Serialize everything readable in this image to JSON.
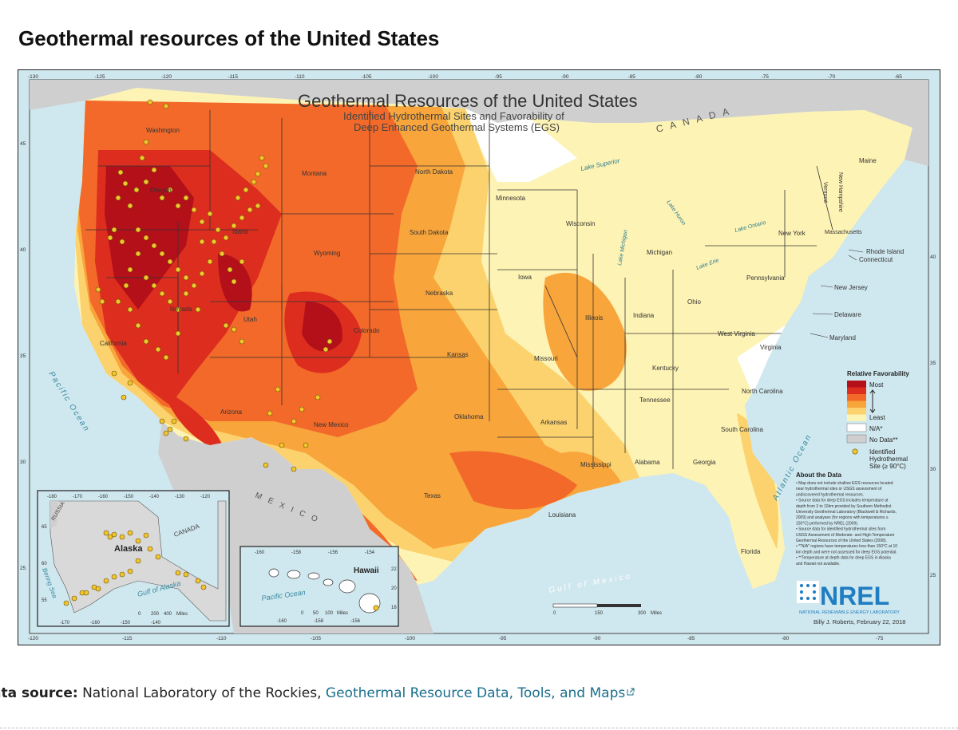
{
  "page": {
    "title": "Geothermal resources of the United States"
  },
  "map": {
    "title": "Geothermal Resources of the United States",
    "subtitle_line1": "Identified Hydrothermal Sites and Favorability of",
    "subtitle_line2": "Deep Enhanced Geothermal Systems (EGS)",
    "canada_label": "C A N A D A",
    "mexico_label": "M E X I C O",
    "water_labels": {
      "pacific": "Pacific Ocean",
      "atlantic": "Atlantic Ocean",
      "gulf": "Gulf of Mexico",
      "superior": "Lake Superior",
      "michigan": "Lake Michigan",
      "huron": "Lake Huron",
      "erie": "Lake Erie",
      "ontario": "Lake Ontario"
    },
    "top_ticks": [
      "-130",
      "-125",
      "-120",
      "-115",
      "-110",
      "-105",
      "-100",
      "-95",
      "-90",
      "-85",
      "-80",
      "-75",
      "-70",
      "-65"
    ],
    "bottom_ticks": [
      "-120",
      "-115",
      "-110",
      "-105",
      "-100",
      "-95",
      "-90",
      "-85",
      "-80",
      "-75"
    ],
    "left_ticks": [
      "45",
      "40",
      "35",
      "30",
      "25"
    ],
    "right_ticks": [
      "40",
      "35",
      "30",
      "25"
    ],
    "states": {
      "washington": "Washington",
      "oregon": "Oregon",
      "california": "California",
      "nevada": "Nevada",
      "idaho": "Idaho",
      "montana": "Montana",
      "wyoming": "Wyoming",
      "utah": "Utah",
      "arizona": "Arizona",
      "colorado": "Colorado",
      "new_mexico": "New Mexico",
      "north_dakota": "North Dakota",
      "south_dakota": "South Dakota",
      "nebraska": "Nebraska",
      "kansas": "Kansas",
      "oklahoma": "Oklahoma",
      "texas": "Texas",
      "minnesota": "Minnesota",
      "iowa": "Iowa",
      "missouri": "Missouri",
      "arkansas": "Arkansas",
      "louisiana": "Louisiana",
      "wisconsin": "Wisconsin",
      "illinois": "Illinois",
      "michigan": "Michigan",
      "indiana": "Indiana",
      "ohio": "Ohio",
      "kentucky": "Kentucky",
      "tennessee": "Tennessee",
      "mississippi": "Mississippi",
      "alabama": "Alabama",
      "georgia": "Georgia",
      "florida": "Florida",
      "south_carolina": "South Carolina",
      "north_carolina": "North Carolina",
      "virginia": "Virginia",
      "west_virginia": "West Virginia",
      "pennsylvania": "Pennsylvania",
      "new_york": "New York",
      "vermont": "Vermont",
      "new_hampshire": "New Hampshire",
      "maine": "Maine",
      "massachusetts": "Massachusetts",
      "rhode_island": "Rhode Island",
      "connecticut": "Connecticut",
      "new_jersey": "New Jersey",
      "delaware": "Delaware",
      "maryland": "Maryland"
    },
    "legend": {
      "title": "Relative Favorability",
      "most": "Most",
      "least": "Least",
      "na": "N/A*",
      "no_data": "No Data**",
      "site_line1": "Identified",
      "site_line2": "Hydrothermal",
      "site_line3": "Site (≥ 90°C)",
      "colors": [
        "#b3101a",
        "#dc2d1f",
        "#f2692a",
        "#f8a53c",
        "#fbd26d",
        "#fdf3b4"
      ]
    },
    "about": {
      "title": "About the Data",
      "lines": [
        "• Map does not include shallow EGS resources located",
        "near hydrothermal sites or USGS assessment of",
        "undiscovered hydrothermal resources.",
        "• Source data for deep EGS includes temperature at",
        "depth from 3 to 10km provided by Southern Methodist",
        "University Geothermal Laboratory (Blackwell & Richards,",
        "2009) and analyses (for regions with temperatures ≥",
        "150°C) performed by NREL (2009).",
        "• Source data for identified hydrothermal sites from",
        "USGS Assessment of Moderate- and High-Temperature",
        "Geothermal Resources of the United States (2008).",
        "• *\"N/A\" regions have temperatures less than 150°C at 10",
        "km depth and were not assessed for deep EGS potential.",
        "• **Temperature at depth data for deep EGS in Alaska",
        "and Hawaii not available."
      ]
    },
    "nrel": {
      "logo": "NREL",
      "name": "NATIONAL RENEWABLE ENERGY LABORATORY",
      "credit": "Billy J. Roberts, February 22, 2018"
    },
    "scale": {
      "v0": "0",
      "v1": "150",
      "v2": "300",
      "unit": "Miles"
    },
    "alaska": {
      "label": "Alaska",
      "russia": "RUSSIA",
      "canada": "CANADA",
      "bering": "Bering Sea",
      "gulf": "Gulf of Alaska",
      "top_ticks": [
        "-180",
        "-170",
        "-160",
        "-150",
        "-140",
        "-130",
        "-120"
      ],
      "bottom_ticks": [
        "-170",
        "-160",
        "-150",
        "-140"
      ],
      "lat_ticks": [
        "65",
        "60",
        "55"
      ],
      "scale": [
        "0",
        "200",
        "400",
        "Miles"
      ]
    },
    "hawaii": {
      "label": "Hawaii",
      "pacific": "Pacific Ocean",
      "top_ticks": [
        "-160",
        "-158",
        "-156",
        "-154"
      ],
      "bottom_ticks": [
        "-160",
        "-158",
        "-156"
      ],
      "lat_ticks": [
        "22",
        "20",
        "18"
      ],
      "scale": [
        "0",
        "50",
        "100",
        "Miles"
      ]
    }
  },
  "source": {
    "label": "ata source:",
    "text": " National Laboratory of the Rockies, ",
    "link": "Geothermal Resource Data, Tools, and Maps"
  }
}
